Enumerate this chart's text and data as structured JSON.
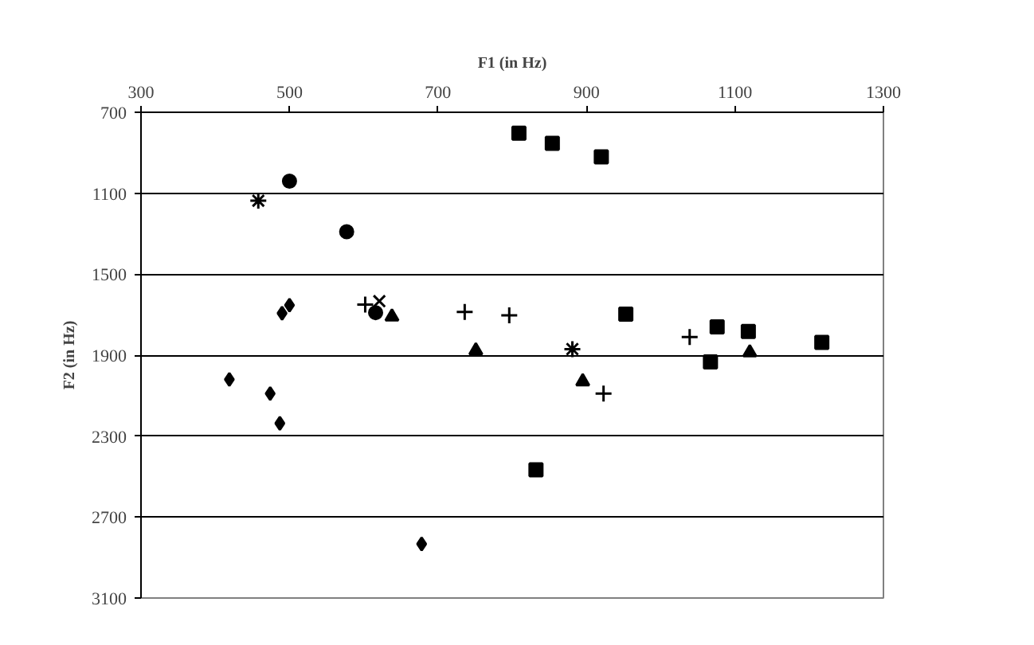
{
  "chart_data": {
    "type": "scatter",
    "xlabel": "F1 (in Hz)",
    "ylabel": "F2 (in Hz)",
    "xlim": [
      300,
      1300
    ],
    "xticks": [
      300,
      500,
      700,
      900,
      1100,
      1300
    ],
    "ylim": [
      3100,
      700
    ],
    "yticks": [
      700,
      1100,
      1500,
      1900,
      2300,
      2700,
      3100
    ],
    "grid": "y",
    "series": [
      {
        "marker": "circle",
        "color": "#000000",
        "x": [
          500,
          577,
          616
        ],
        "values": [
          1040,
          1290,
          1690
        ]
      },
      {
        "marker": "diamond",
        "color": "#000000",
        "x": [
          419,
          474,
          487,
          490,
          500,
          678
        ],
        "values": [
          2020,
          2090,
          2237,
          1693,
          1653,
          2833
        ]
      },
      {
        "marker": "triangle",
        "color": "#000000",
        "x": [
          638,
          751,
          895,
          1120
        ],
        "values": [
          1710,
          1877,
          2030,
          1887
        ]
      },
      {
        "marker": "square",
        "color": "#000000",
        "x": [
          953,
          832,
          1067,
          1076,
          1118,
          1217
        ],
        "values": [
          1697,
          2467,
          1933,
          1760,
          1783,
          1837
        ]
      },
      {
        "marker": "cross",
        "color": "#000000",
        "x": [
          602,
          736,
          796,
          923,
          1039
        ],
        "values": [
          1650,
          1687,
          1703,
          2090,
          1810
        ]
      },
      {
        "marker": "square",
        "color": "#000000",
        "x": [
          809,
          854,
          920
        ],
        "values": [
          803,
          853,
          920
        ]
      },
      {
        "color": "#000000",
        "x": [
          458,
          881
        ],
        "values": [
          1137,
          1870
        ]
      },
      {
        "marker": "x",
        "color": "#000000",
        "x": [
          621
        ],
        "values": [
          1633
        ]
      }
    ]
  }
}
